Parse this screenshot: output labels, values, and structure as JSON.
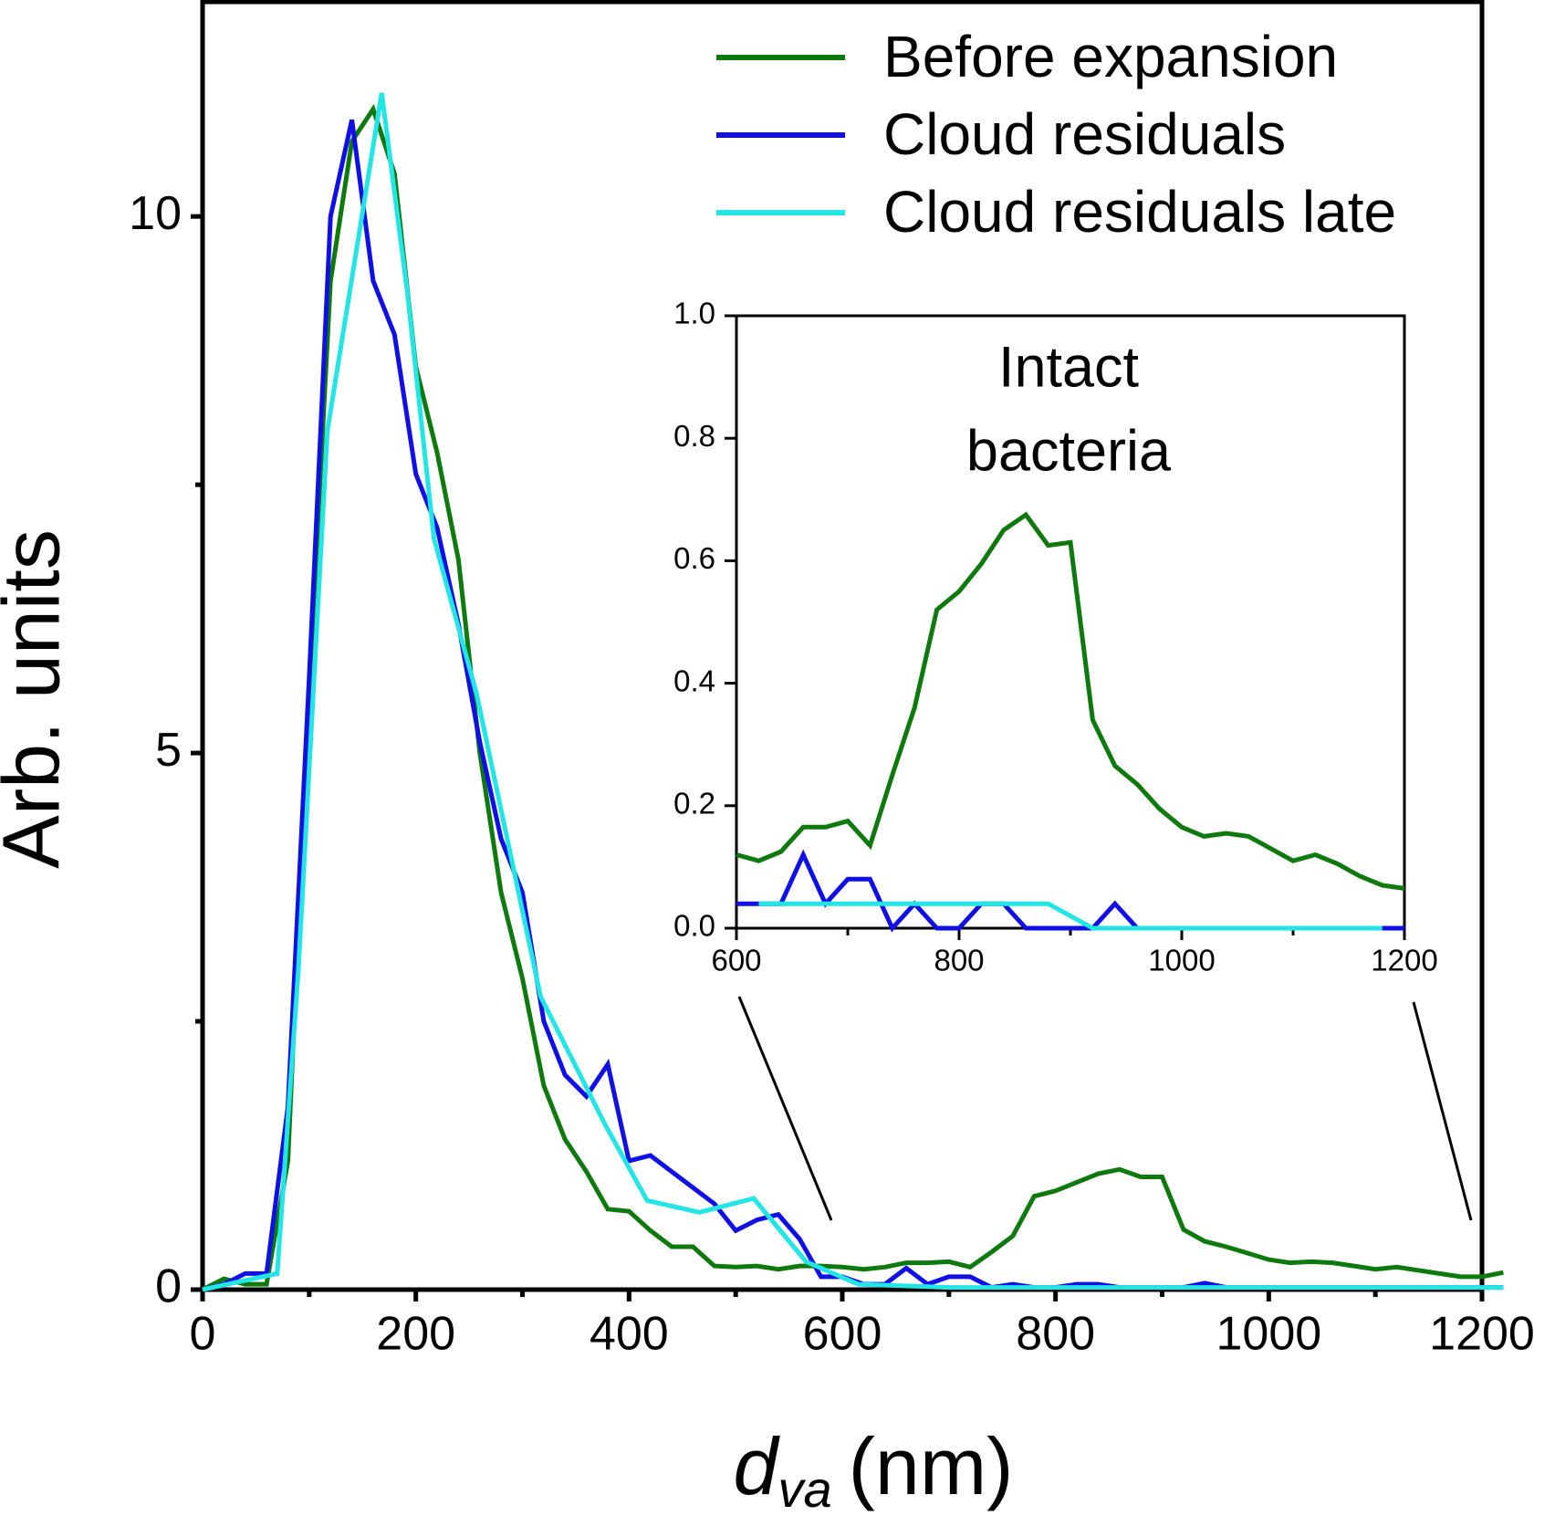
{
  "chart_data": [
    {
      "type": "line",
      "ylabel": "Arb. units",
      "xlabel_symbol": "d",
      "xlabel_subscript": "va",
      "xlabel_unit": "(nm)",
      "xlim": [
        0,
        1200
      ],
      "xticks": [
        0,
        200,
        400,
        600,
        800,
        1000,
        1200
      ],
      "xminor_ticks": [
        100,
        300,
        500,
        700,
        900,
        1100
      ],
      "ylim": [
        0,
        12
      ],
      "yticks": [
        0,
        5,
        10
      ],
      "yminor_ticks": [
        2.5,
        7.5
      ],
      "legend": "upper right",
      "series": [
        {
          "name": "Before expansion",
          "color": "#0e7a0e",
          "x": [
            0,
            20,
            40,
            60,
            80,
            100,
            120,
            140,
            160,
            180,
            200,
            220,
            240,
            260,
            280,
            300,
            320,
            340,
            360,
            380,
            400,
            420,
            440,
            460,
            480,
            500,
            520,
            540,
            560,
            580,
            600,
            620,
            640,
            660,
            680,
            700,
            720,
            740,
            760,
            780,
            800,
            820,
            840,
            860,
            880,
            900,
            920,
            940,
            960,
            980,
            1000,
            1020,
            1040,
            1060,
            1080,
            1100,
            1120,
            1140,
            1160,
            1180,
            1200,
            1220
          ],
          "values": [
            0,
            0.1,
            0.05,
            0.05,
            1.2,
            5.6,
            9.4,
            10.7,
            11.0,
            10.4,
            8.6,
            7.8,
            6.8,
            5.0,
            3.7,
            2.9,
            1.9,
            1.4,
            1.1,
            0.75,
            0.73,
            0.55,
            0.4,
            0.4,
            0.22,
            0.21,
            0.22,
            0.19,
            0.22,
            0.22,
            0.21,
            0.19,
            0.21,
            0.25,
            0.25,
            0.26,
            0.21,
            0.35,
            0.5,
            0.87,
            0.92,
            1.0,
            1.08,
            1.12,
            1.05,
            1.05,
            0.56,
            0.45,
            0.4,
            0.34,
            0.28,
            0.25,
            0.26,
            0.25,
            0.22,
            0.19,
            0.21,
            0.18,
            0.15,
            0.12,
            0.12,
            0.16
          ]
        },
        {
          "name": "Cloud residuals",
          "color": "#1010e6",
          "x": [
            0,
            20,
            40,
            60,
            80,
            100,
            120,
            140,
            160,
            180,
            200,
            220,
            240,
            260,
            280,
            300,
            320,
            340,
            360,
            380,
            400,
            420,
            440,
            460,
            480,
            500,
            520,
            540,
            560,
            580,
            600,
            620,
            640,
            660,
            680,
            700,
            720,
            740,
            760,
            780,
            800,
            820,
            840,
            860,
            880,
            900,
            920,
            940,
            960,
            980,
            1000,
            1020,
            1040,
            1060,
            1080,
            1100,
            1120,
            1140,
            1160,
            1180,
            1200,
            1220
          ],
          "values": [
            0,
            0.05,
            0.15,
            0.15,
            1.7,
            5.7,
            10.0,
            10.9,
            9.4,
            8.9,
            7.6,
            7.1,
            6.2,
            5.1,
            4.2,
            3.7,
            2.5,
            2.0,
            1.8,
            2.1,
            1.2,
            1.25,
            1.1,
            0.95,
            0.8,
            0.55,
            0.65,
            0.7,
            0.47,
            0.12,
            0.12,
            0.05,
            0.05,
            0.2,
            0.05,
            0.12,
            0.12,
            0.02,
            0.05,
            0.02,
            0.02,
            0.05,
            0.05,
            0.02,
            0.02,
            0.02,
            0.02,
            0.06,
            0.02,
            0.02,
            0.02,
            0.02,
            0.02,
            0.02,
            0.02,
            0.02,
            0.02,
            0.02,
            0.02,
            0.02,
            0.02,
            0.02
          ]
        },
        {
          "name": "Cloud residuals late",
          "color": "#22e6e6",
          "x": [
            0,
            70,
            90,
            117,
            168,
            192,
            217,
            257,
            317,
            378,
            417,
            466,
            517,
            566,
            615,
            700,
            800,
            900,
            1000,
            1100,
            1220
          ],
          "values": [
            0,
            0.15,
            3,
            8.0,
            11.15,
            9.3,
            7.0,
            5.55,
            2.73,
            1.53,
            0.83,
            0.72,
            0.85,
            0.26,
            0.05,
            0.02,
            0.02,
            0.02,
            0.02,
            0.02,
            0.02
          ]
        }
      ]
    },
    {
      "type": "line",
      "title_lines": [
        "Intact",
        "bacteria"
      ],
      "xlim": [
        600,
        1200
      ],
      "xticks": [
        600,
        800,
        1000,
        1200
      ],
      "xminor_ticks": [
        700,
        900,
        1100
      ],
      "ylim": [
        0,
        1.0
      ],
      "yticks": [
        {
          "value": 0,
          "label": "0.0"
        },
        0.2,
        0.4,
        0.6,
        0.8,
        {
          "value": 1,
          "label": "1.0"
        }
      ],
      "series": [
        {
          "color": "#0e7a0e",
          "x": [
            600,
            620,
            640,
            660,
            680,
            700,
            720,
            740,
            760,
            780,
            800,
            820,
            840,
            860,
            880,
            900,
            920,
            940,
            960,
            980,
            1000,
            1020,
            1040,
            1060,
            1080,
            1100,
            1120,
            1140,
            1160,
            1180,
            1200
          ],
          "values": [
            0.12,
            0.11,
            0.125,
            0.165,
            0.165,
            0.175,
            0.135,
            0.25,
            0.36,
            0.52,
            0.55,
            0.595,
            0.65,
            0.675,
            0.625,
            0.63,
            0.34,
            0.265,
            0.235,
            0.195,
            0.165,
            0.15,
            0.155,
            0.15,
            0.13,
            0.11,
            0.12,
            0.105,
            0.085,
            0.07,
            0.065
          ]
        },
        {
          "color": "#1010e6",
          "x": [
            600,
            620,
            640,
            660,
            680,
            700,
            720,
            740,
            760,
            780,
            800,
            820,
            840,
            860,
            880,
            900,
            920,
            940,
            960,
            980,
            1000,
            1020,
            1040,
            1060,
            1080,
            1100,
            1120,
            1140,
            1160,
            1180,
            1200
          ],
          "values": [
            0.04,
            0.04,
            0.04,
            0.12,
            0.04,
            0.08,
            0.08,
            0,
            0.04,
            0,
            0,
            0.04,
            0.04,
            0,
            0,
            0,
            0,
            0.04,
            0,
            0,
            0,
            0,
            0,
            0,
            0,
            0,
            0,
            0,
            0,
            0,
            0
          ]
        },
        {
          "color": "#22e6e6",
          "x": [
            620,
            880,
            920,
            1180
          ],
          "values": [
            0.04,
            0.04,
            0,
            0
          ]
        }
      ]
    }
  ]
}
